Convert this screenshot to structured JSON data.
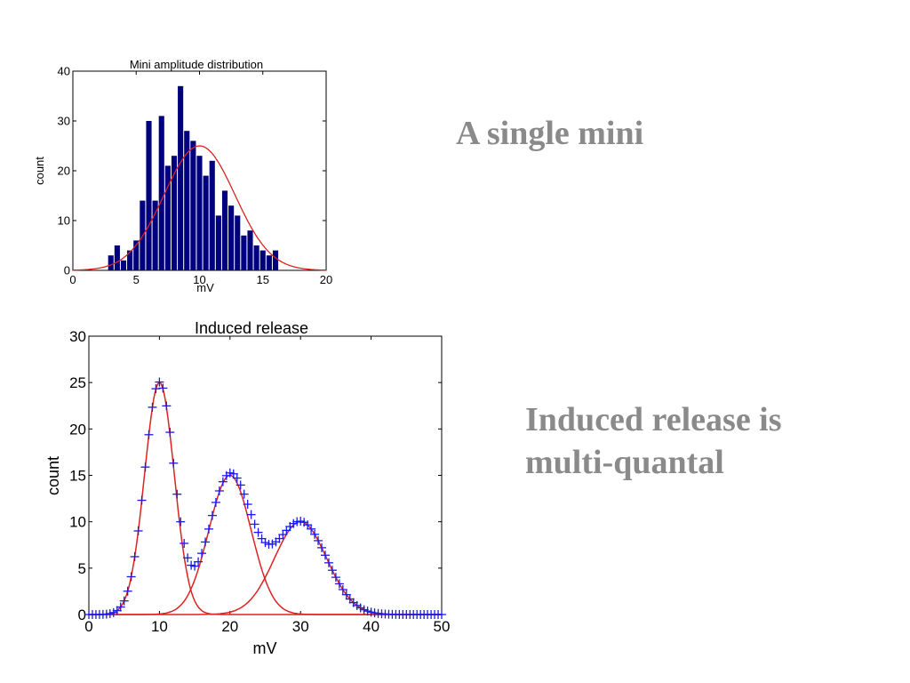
{
  "slide": {
    "single_mini": "A single mini",
    "induced_line1": "Induced release is",
    "induced_line2": "multi-quantal"
  },
  "chart_data": [
    {
      "type": "bar",
      "title": "Mini amplitude distribution",
      "xlabel": "mV",
      "ylabel": "count",
      "xlim": [
        0,
        20
      ],
      "ylim": [
        0,
        40
      ],
      "xticks": [
        0,
        5,
        10,
        15,
        20
      ],
      "yticks": [
        0,
        10,
        20,
        30,
        40
      ],
      "bar_color": "#00007f",
      "fit_color": "#dd2222",
      "bins": [
        3,
        3.5,
        4,
        4.5,
        5,
        5.5,
        6,
        6.5,
        7,
        7.5,
        8,
        8.5,
        9,
        9.5,
        10,
        10.5,
        11,
        11.5,
        12,
        12.5,
        13,
        13.5,
        14,
        14.5,
        15,
        15.5,
        16,
        16.5,
        17
      ],
      "values": [
        3,
        5,
        2,
        4,
        6,
        14,
        30,
        14,
        31,
        21,
        23,
        37,
        28,
        26,
        23,
        19,
        22,
        11,
        16,
        13,
        11,
        7,
        8,
        5,
        4,
        3,
        4,
        0,
        0
      ],
      "bin_width": 0.5,
      "fit": {
        "type": "gaussian",
        "mean": 10,
        "sd": 2.8,
        "peak": 25
      }
    },
    {
      "type": "scatter",
      "title": "Induced release",
      "xlabel": "mV",
      "ylabel": "count",
      "xlim": [
        0,
        50
      ],
      "ylim": [
        0,
        30
      ],
      "xticks": [
        0,
        10,
        20,
        30,
        40,
        50
      ],
      "yticks": [
        0,
        5,
        10,
        15,
        20,
        25,
        30
      ],
      "marker_color": "#1a1aee",
      "fit_color": "#dd2222",
      "x_step": 0.5,
      "components": [
        {
          "mean": 10,
          "sd": 2.1,
          "peak": 25
        },
        {
          "mean": 20,
          "sd": 3.0,
          "peak": 15
        },
        {
          "mean": 30,
          "sd": 3.7,
          "peak": 10
        }
      ]
    }
  ]
}
